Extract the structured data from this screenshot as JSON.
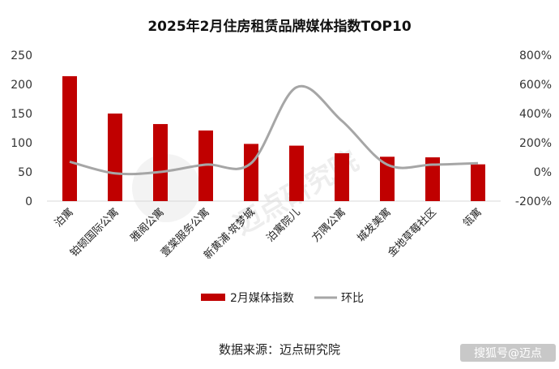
{
  "chart_data": {
    "type": "bar",
    "title": "2025年2月住房租赁品牌媒体指数TOP10",
    "categories": [
      "泊寓",
      "铂顿国际公寓",
      "雅阁公寓",
      "壹棠服务公寓",
      "新黄浦·筑梦城",
      "泊寓院儿",
      "方隅公寓",
      "城发美寓",
      "金地草莓社区",
      "瓴寓"
    ],
    "series": [
      {
        "name": "2月媒体指数",
        "type": "bar",
        "axis": "left",
        "color": "#c00000",
        "values": [
          214,
          150,
          132,
          121,
          98,
          95,
          82,
          76,
          75,
          63
        ]
      },
      {
        "name": "环比",
        "type": "line",
        "axis": "right",
        "color": "#a6a6a6",
        "unit": "%",
        "values": [
          70,
          -10,
          0,
          50,
          60,
          580,
          350,
          50,
          50,
          60
        ]
      }
    ],
    "yaxis_left": {
      "min": 0,
      "max": 250,
      "ticks": [
        "0",
        "50",
        "100",
        "150",
        "200",
        "250"
      ]
    },
    "yaxis_right": {
      "min": -200,
      "max": 800,
      "ticks": [
        "-200%",
        "0%",
        "200%",
        "400%",
        "600%",
        "800%"
      ]
    },
    "legend_position": "bottom",
    "grid": false
  },
  "source_label": "数据来源：迈点研究院",
  "watermark": "迈点研究院",
  "corner_mark": "搜狐号@迈点"
}
